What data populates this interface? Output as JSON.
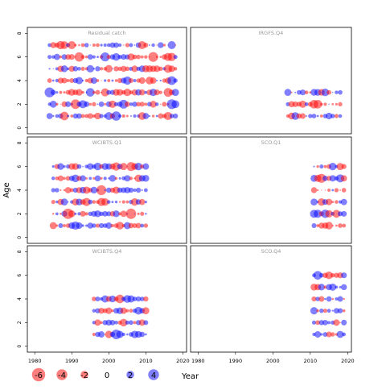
{
  "chart_data": {
    "type": "scatter",
    "subtype": "bubble-residual-panels",
    "ylabel": "Age",
    "xlabel": "Year",
    "xlim": [
      1978,
      2021
    ],
    "ylim": [
      -0.5,
      8.5
    ],
    "x_ticks": [
      1980,
      1990,
      2000,
      2010,
      2020
    ],
    "y_ticks": [
      0,
      2,
      4,
      6,
      8
    ],
    "colors": {
      "positive": "#0000ff",
      "negative": "#ff0000",
      "alpha": 0.5
    },
    "legend": {
      "position": "bottom",
      "values": [
        -6,
        -4,
        -2,
        0,
        2,
        4
      ],
      "labels": [
        "-6",
        "-4",
        "-2",
        "0",
        "2",
        "4"
      ]
    },
    "panels": [
      {
        "title": "Residual catch",
        "years": [
          1984,
          2018
        ],
        "ages": [
          1,
          2,
          3,
          4,
          5,
          6,
          7
        ]
      },
      {
        "title": "IRGFS.Q4",
        "years": [
          2004,
          2018
        ],
        "ages": [
          1,
          2,
          3
        ]
      },
      {
        "title": "WCIBTS.Q1",
        "years": [
          1985,
          2010
        ],
        "ages": [
          1,
          2,
          3,
          4,
          5,
          6
        ]
      },
      {
        "title": "SCO.Q1",
        "years": [
          2011,
          2019
        ],
        "ages": [
          1,
          2,
          3,
          4,
          5,
          6
        ]
      },
      {
        "title": "WCIBTS.Q4",
        "years": [
          1996,
          2010
        ],
        "ages": [
          1,
          2,
          3,
          4
        ]
      },
      {
        "title": "SCO.Q4",
        "years": [
          2011,
          2019
        ],
        "ages": [
          1,
          2,
          3,
          4,
          5,
          6
        ]
      }
    ]
  }
}
